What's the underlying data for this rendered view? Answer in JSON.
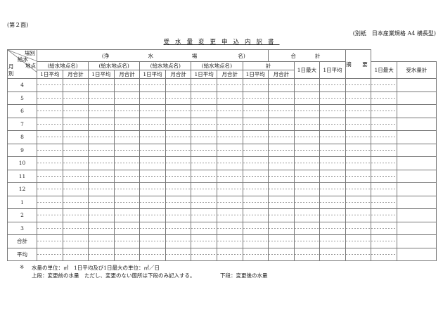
{
  "page_label": "(第２面)",
  "format_note": "(別紙　日本産業規格 A4 横長型)",
  "title": "受水量変更申込内訳書",
  "header": {
    "corner": {
      "top": "場別",
      "middle": "給水\n地点",
      "middle_line1": "給水",
      "middle_line2": "地点",
      "bottom_line1": "月",
      "bottom_line2": "別"
    },
    "plant_open": "(浄",
    "plant_mid1": "水",
    "plant_mid2": "場",
    "plant_close": "名)",
    "supply_point": "(給水地点名)",
    "subtotal": "計",
    "daily_max": "1日最大",
    "total": "合　　計",
    "remarks": "摘　要",
    "daily_avg": "1日平均",
    "monthly_sum": "月合計",
    "received_total": "受水量計"
  },
  "rows": [
    "4",
    "5",
    "6",
    "7",
    "8",
    "9",
    "10",
    "11",
    "12",
    "1",
    "2",
    "3",
    "合計",
    "平均"
  ],
  "footer": {
    "mark": "※",
    "units": "水量の単位：㎥　1日平均及び1日最大の単位：㎥／日",
    "upper": "上段：変更前の水量　ただし、変更のない箇所は下段のみ記入する。",
    "lower": "下段：変更後の水量"
  }
}
